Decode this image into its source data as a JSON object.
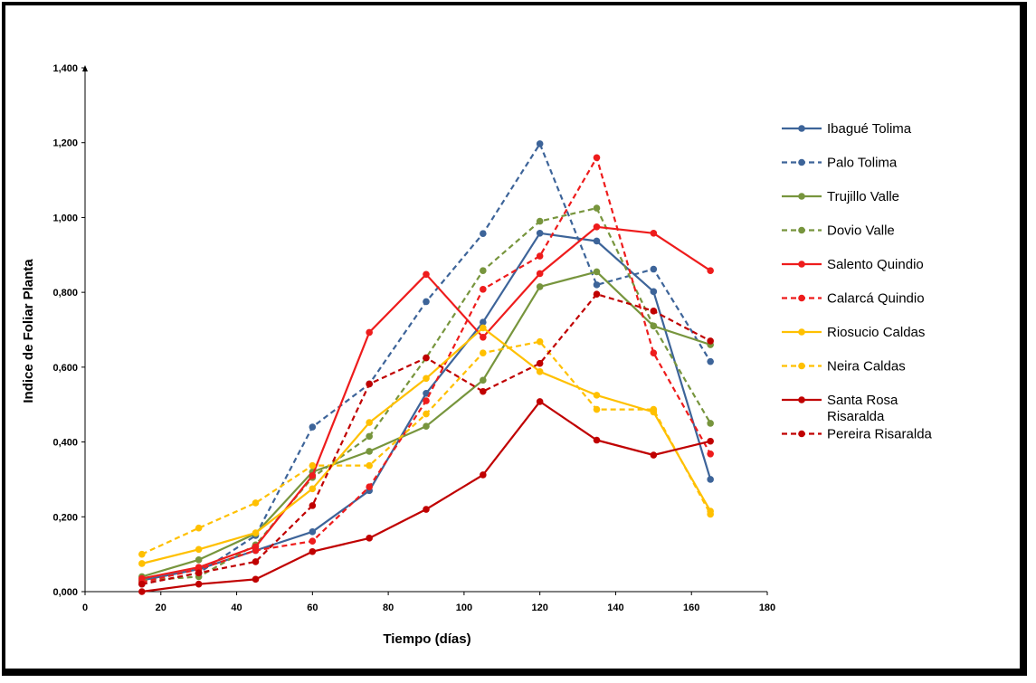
{
  "chart_data": {
    "type": "line",
    "title": "",
    "xlabel": "Tiempo (días)",
    "ylabel": "Indice de Foliar Planta",
    "xlim": [
      0,
      180
    ],
    "ylim": [
      0,
      1.4
    ],
    "x_ticks": [
      0,
      20,
      40,
      60,
      80,
      100,
      120,
      140,
      160,
      180
    ],
    "x_tick_labels": [
      "0",
      "20",
      "40",
      "60",
      "80",
      "100",
      "120",
      "140",
      "160",
      "180"
    ],
    "y_ticks": [
      0,
      0.2,
      0.4,
      0.6,
      0.8,
      1.0,
      1.2,
      1.4
    ],
    "y_tick_labels": [
      "0,000",
      "0,200",
      "0,400",
      "0,600",
      "0,800",
      "1,000",
      "1,200",
      "1,400"
    ],
    "grid": false,
    "legend_position": "right",
    "x": [
      15,
      30,
      45,
      60,
      75,
      90,
      105,
      120,
      135,
      150,
      165
    ],
    "series": [
      {
        "name": "Ibagué Tolima",
        "color": "#3d6499",
        "dash": false,
        "values": [
          0.03,
          0.06,
          0.11,
          0.16,
          0.27,
          0.53,
          0.72,
          0.958,
          0.937,
          0.802,
          0.3
        ]
      },
      {
        "name": "Palo Tolima",
        "color": "#3d6499",
        "dash": true,
        "values": [
          0.02,
          0.05,
          0.15,
          0.44,
          0.555,
          0.775,
          0.957,
          1.197,
          0.82,
          0.862,
          0.615
        ]
      },
      {
        "name": "Trujillo Valle",
        "color": "#77953d",
        "dash": false,
        "values": [
          0.04,
          0.085,
          0.155,
          0.32,
          0.375,
          0.442,
          0.565,
          0.815,
          0.855,
          0.71,
          0.66
        ]
      },
      {
        "name": "Dovio Valle",
        "color": "#77953d",
        "dash": true,
        "values": [
          0.03,
          0.04,
          0.125,
          0.305,
          0.415,
          0.625,
          0.858,
          0.99,
          1.025,
          0.71,
          0.45
        ]
      },
      {
        "name": "Salento Quindio",
        "color": "#ee1c1c",
        "dash": false,
        "values": [
          0.035,
          0.065,
          0.12,
          0.31,
          0.693,
          0.848,
          0.68,
          0.85,
          0.975,
          0.958,
          0.858
        ]
      },
      {
        "name": "Calarcá Quindio",
        "color": "#ee1c1c",
        "dash": true,
        "values": [
          0.025,
          0.06,
          0.11,
          0.135,
          0.28,
          0.51,
          0.808,
          0.897,
          1.16,
          0.638,
          0.368
        ]
      },
      {
        "name": "Riosucio Caldas",
        "color": "#ffc000",
        "dash": false,
        "values": [
          0.075,
          0.113,
          0.157,
          0.275,
          0.452,
          0.57,
          0.705,
          0.588,
          0.525,
          0.48,
          0.215
        ]
      },
      {
        "name": "Neira Caldas",
        "color": "#ffc000",
        "dash": true,
        "values": [
          0.1,
          0.17,
          0.237,
          0.337,
          0.337,
          0.475,
          0.638,
          0.668,
          0.487,
          0.487,
          0.207
        ]
      },
      {
        "name": "Santa Rosa Risaralda",
        "color": "#c00000",
        "dash": false,
        "values": [
          0.0,
          0.02,
          0.033,
          0.107,
          0.143,
          0.22,
          0.312,
          0.508,
          0.405,
          0.365,
          0.402
        ]
      },
      {
        "name": "Pereira Risaralda",
        "color": "#c00000",
        "dash": true,
        "values": [
          0.02,
          0.05,
          0.08,
          0.23,
          0.555,
          0.625,
          0.535,
          0.61,
          0.795,
          0.75,
          0.67
        ]
      }
    ]
  }
}
